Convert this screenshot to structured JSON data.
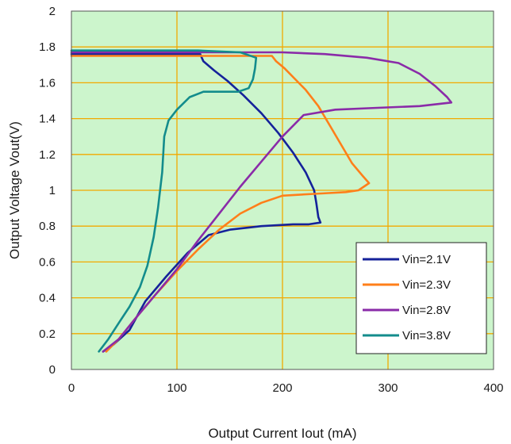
{
  "chart_data": {
    "type": "line",
    "title": "",
    "xlabel": "Output Current Iout (mA)",
    "ylabel": "Output Voltage Vout(V)",
    "xlim": [
      0,
      400
    ],
    "ylim": [
      0,
      2
    ],
    "xticks": [
      0,
      100,
      200,
      300,
      400
    ],
    "xtick_labels": [
      "0",
      "100",
      "200",
      "300",
      "400"
    ],
    "yticks": [
      0,
      0.2,
      0.4,
      0.6,
      0.8,
      1,
      1.2,
      1.4,
      1.6,
      1.8,
      2
    ],
    "ytick_labels": [
      "0",
      "0.2",
      "0.4",
      "0.6",
      "0.8",
      "1",
      "1.2",
      "1.4",
      "1.6",
      "1.8",
      "2"
    ],
    "grid": true,
    "legend_position": "bottom-right",
    "colors": {
      "plot_background": "#ccf5cc",
      "grid": "#f2a900",
      "axes": "#555555"
    },
    "series": [
      {
        "name": "Vin=2.1V",
        "color": "#15229a",
        "points": [
          [
            30,
            0.1
          ],
          [
            40,
            0.14
          ],
          [
            55,
            0.22
          ],
          [
            70,
            0.38
          ],
          [
            90,
            0.52
          ],
          [
            110,
            0.65
          ],
          [
            130,
            0.75
          ],
          [
            150,
            0.78
          ],
          [
            180,
            0.8
          ],
          [
            210,
            0.81
          ],
          [
            225,
            0.81
          ],
          [
            236,
            0.82
          ],
          [
            234,
            0.85
          ],
          [
            232,
            0.93
          ],
          [
            230,
            1.0
          ],
          [
            222,
            1.1
          ],
          [
            210,
            1.21
          ],
          [
            196,
            1.32
          ],
          [
            180,
            1.43
          ],
          [
            163,
            1.53
          ],
          [
            148,
            1.61
          ],
          [
            135,
            1.67
          ],
          [
            125,
            1.72
          ],
          [
            122,
            1.76
          ],
          [
            110,
            1.76
          ],
          [
            80,
            1.76
          ],
          [
            40,
            1.76
          ],
          [
            0,
            1.76
          ]
        ]
      },
      {
        "name": "Vin=2.3V",
        "color": "#ff7f1a",
        "points": [
          [
            33,
            0.1
          ],
          [
            45,
            0.17
          ],
          [
            60,
            0.28
          ],
          [
            80,
            0.42
          ],
          [
            100,
            0.55
          ],
          [
            120,
            0.67
          ],
          [
            140,
            0.78
          ],
          [
            160,
            0.87
          ],
          [
            180,
            0.93
          ],
          [
            200,
            0.97
          ],
          [
            230,
            0.98
          ],
          [
            260,
            0.99
          ],
          [
            272,
            1.0
          ],
          [
            282,
            1.04
          ],
          [
            276,
            1.08
          ],
          [
            266,
            1.15
          ],
          [
            256,
            1.25
          ],
          [
            246,
            1.35
          ],
          [
            234,
            1.47
          ],
          [
            222,
            1.56
          ],
          [
            212,
            1.62
          ],
          [
            202,
            1.68
          ],
          [
            194,
            1.72
          ],
          [
            190,
            1.75
          ],
          [
            150,
            1.75
          ],
          [
            80,
            1.75
          ],
          [
            0,
            1.75
          ]
        ]
      },
      {
        "name": "Vin=2.8V",
        "color": "#8a2ba8",
        "points": [
          [
            30,
            0.1
          ],
          [
            45,
            0.17
          ],
          [
            60,
            0.28
          ],
          [
            80,
            0.42
          ],
          [
            100,
            0.56
          ],
          [
            120,
            0.72
          ],
          [
            140,
            0.87
          ],
          [
            160,
            1.02
          ],
          [
            180,
            1.16
          ],
          [
            200,
            1.3
          ],
          [
            220,
            1.42
          ],
          [
            250,
            1.45
          ],
          [
            290,
            1.46
          ],
          [
            330,
            1.47
          ],
          [
            360,
            1.49
          ],
          [
            356,
            1.52
          ],
          [
            345,
            1.58
          ],
          [
            330,
            1.65
          ],
          [
            310,
            1.71
          ],
          [
            280,
            1.74
          ],
          [
            240,
            1.76
          ],
          [
            200,
            1.77
          ],
          [
            150,
            1.77
          ],
          [
            80,
            1.77
          ],
          [
            0,
            1.77
          ]
        ]
      },
      {
        "name": "Vin=3.8V",
        "color": "#138c8c",
        "points": [
          [
            26,
            0.1
          ],
          [
            35,
            0.17
          ],
          [
            45,
            0.26
          ],
          [
            55,
            0.35
          ],
          [
            65,
            0.46
          ],
          [
            72,
            0.58
          ],
          [
            78,
            0.74
          ],
          [
            82,
            0.9
          ],
          [
            86,
            1.1
          ],
          [
            88,
            1.3
          ],
          [
            92,
            1.39
          ],
          [
            100,
            1.45
          ],
          [
            112,
            1.52
          ],
          [
            125,
            1.55
          ],
          [
            140,
            1.55
          ],
          [
            158,
            1.55
          ],
          [
            168,
            1.57
          ],
          [
            172,
            1.62
          ],
          [
            174,
            1.68
          ],
          [
            175,
            1.74
          ],
          [
            160,
            1.77
          ],
          [
            120,
            1.78
          ],
          [
            60,
            1.78
          ],
          [
            0,
            1.78
          ]
        ]
      }
    ]
  }
}
